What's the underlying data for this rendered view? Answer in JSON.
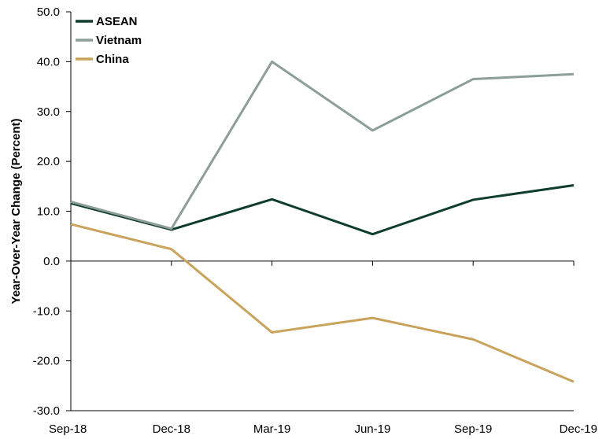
{
  "chart_data": {
    "type": "line",
    "title": "",
    "xlabel": "",
    "ylabel": "Year-Over-Year Change (Percent)",
    "categories": [
      "Sep-18",
      "Dec-18",
      "Mar-19",
      "Jun-19",
      "Sep-19",
      "Dec-19"
    ],
    "ylim": [
      -30,
      50
    ],
    "yticks": [
      50,
      40,
      30,
      20,
      10,
      0,
      -10,
      -20,
      -30
    ],
    "ytick_labels": [
      "50.0",
      "40.0",
      "30.0",
      "20.0",
      "10.0",
      "0.0",
      "-10.0",
      "-20.0",
      "-30.0"
    ],
    "grid": false,
    "legend_position": "top-left",
    "series": [
      {
        "name": "ASEAN",
        "color": "#0f3d2e",
        "values": [
          11.6,
          6.3,
          12.4,
          5.4,
          12.3,
          15.2
        ]
      },
      {
        "name": "Vietnam",
        "color": "#8c9e97",
        "values": [
          11.9,
          6.5,
          40.0,
          26.2,
          36.5,
          37.5
        ]
      },
      {
        "name": "China",
        "color": "#c9a35c",
        "values": [
          7.4,
          2.4,
          -14.3,
          -11.4,
          -15.7,
          -24.2
        ]
      }
    ]
  }
}
